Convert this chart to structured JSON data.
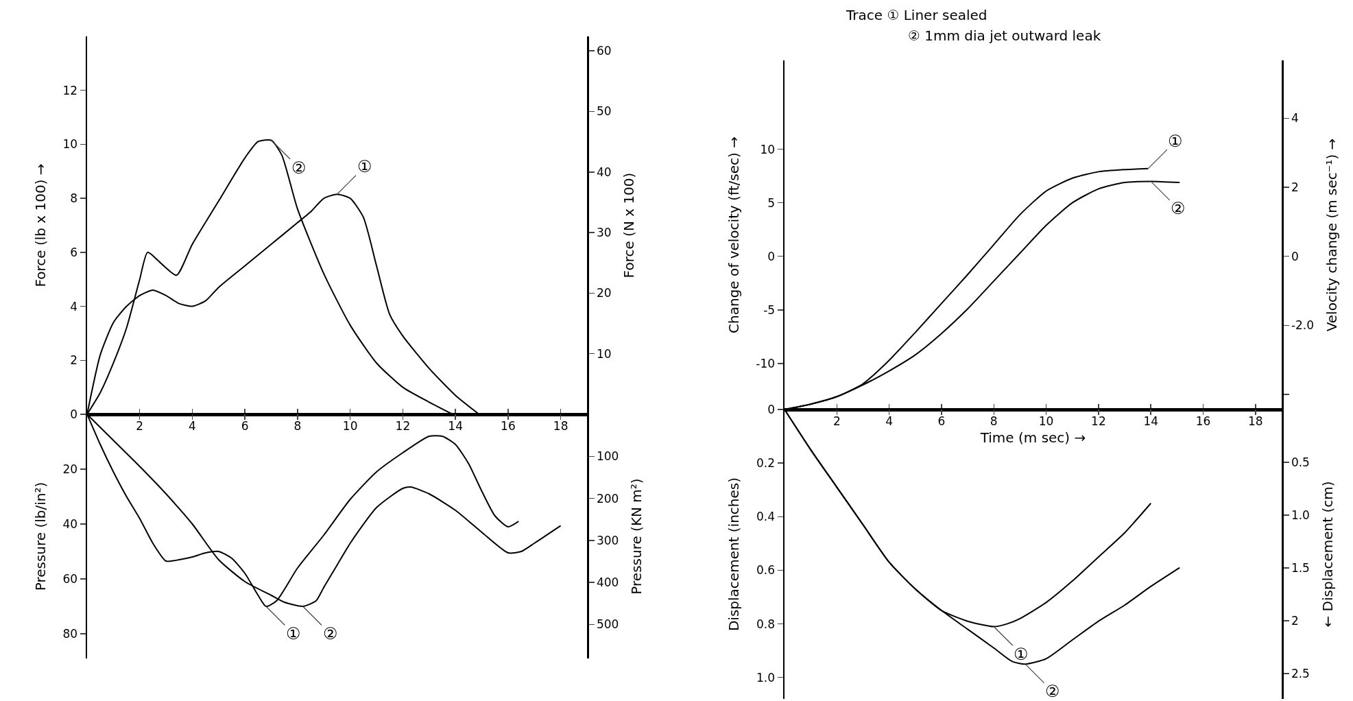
{
  "chart_data": [
    {
      "type": "line",
      "ylabel": "Force (lb x 100) →",
      "y2label": "Force (N x 100)",
      "xlim": [
        0,
        19
      ],
      "xticks": [
        2,
        4,
        6,
        8,
        10,
        12,
        14,
        16,
        18
      ],
      "ylim": [
        0,
        14
      ],
      "yticks": [
        0,
        2,
        4,
        6,
        8,
        10,
        12
      ],
      "y2lim": [
        0,
        62.4
      ],
      "y2ticks": [
        10,
        20,
        30,
        40,
        50,
        60
      ],
      "series": [
        {
          "name": "①",
          "color": "#000000",
          "x": [
            0,
            0.5,
            1,
            1.5,
            2,
            2.5,
            3,
            3.5,
            4,
            4.5,
            5,
            6,
            7,
            8,
            8.5,
            9,
            9.5,
            10,
            10.5,
            11,
            11.5,
            12,
            13,
            14,
            14.9
          ],
          "values": [
            0,
            2.2,
            3.4,
            4.0,
            4.4,
            4.6,
            4.4,
            4.1,
            4.0,
            4.2,
            4.7,
            5.5,
            6.3,
            7.1,
            7.5,
            8.0,
            8.15,
            8.0,
            7.3,
            5.5,
            3.7,
            2.9,
            1.7,
            0.7,
            0
          ]
        },
        {
          "name": "②",
          "color": "#000000",
          "x": [
            0,
            0.5,
            1,
            1.5,
            2,
            2.3,
            2.8,
            3.4,
            4,
            5,
            6,
            6.5,
            7,
            7.4,
            8,
            9,
            10,
            11,
            12,
            13,
            13.9
          ],
          "values": [
            0,
            0.8,
            1.9,
            3.2,
            5.0,
            6.0,
            5.6,
            5.15,
            6.3,
            7.9,
            9.5,
            10.1,
            10.15,
            9.6,
            7.6,
            5.2,
            3.3,
            1.9,
            1.0,
            0.45,
            0
          ]
        }
      ]
    },
    {
      "type": "line",
      "ylabel": "Pressure (lb/in²)",
      "y2label": "Pressure (KN m²)",
      "xlim": [
        0,
        19
      ],
      "xticks": [
        2,
        4,
        6,
        8,
        10,
        12,
        14,
        16,
        18
      ],
      "ylim": [
        89,
        0
      ],
      "yticks": [
        20,
        40,
        60,
        80
      ],
      "y2lim": [
        581,
        0
      ],
      "y2ticks": [
        100,
        200,
        300,
        400,
        500
      ],
      "tick_labels": "y",
      "series": [
        {
          "name": "①",
          "color": "#000000",
          "x": [
            0,
            0.5,
            1,
            1.5,
            2,
            2.5,
            3,
            3.5,
            4,
            4.5,
            5,
            5.5,
            6,
            6.5,
            6.8,
            7.2,
            8,
            9,
            10,
            11,
            12,
            13,
            13.5,
            14,
            14.5,
            15,
            15.5,
            16,
            16.4
          ],
          "values": [
            0,
            11,
            21,
            30,
            38,
            47,
            53.5,
            53,
            52,
            50.5,
            50,
            52.5,
            58,
            66,
            70,
            68,
            56,
            44,
            31,
            21,
            14,
            8,
            8,
            11,
            18,
            28,
            37,
            41,
            39
          ]
        },
        {
          "name": "②",
          "color": "#000000",
          "x": [
            0,
            1,
            2,
            3,
            4,
            5,
            6,
            7,
            7.5,
            8.2,
            8.7,
            9,
            9.5,
            10,
            11,
            12,
            12.3,
            13,
            14,
            15,
            16,
            16.5,
            17,
            18
          ],
          "values": [
            0,
            9.5,
            19,
            29,
            40,
            53,
            61,
            66,
            68.5,
            70,
            68,
            63,
            55,
            47,
            34,
            27,
            26.5,
            29,
            35,
            43,
            50.5,
            50,
            47,
            40.6
          ]
        }
      ]
    },
    {
      "type": "line",
      "ylabel": "Change of velocity (ft/sec) →",
      "y2label": "Velocity change (m sec⁻¹) →",
      "xlabel": "Time (m sec) →",
      "annotations": [
        "Trace ① Liner sealed",
        "② 1mm dia jet outward leak"
      ],
      "xlim": [
        0,
        19
      ],
      "xticks": [
        2,
        4,
        6,
        8,
        10,
        12,
        14,
        16,
        18
      ],
      "ylim": [
        -14.3,
        18.3
      ],
      "yticks": [
        -10,
        -5,
        0,
        5,
        10
      ],
      "y2lim": [
        -4.44,
        5.68
      ],
      "y2ticks": [
        {
          "value": -4,
          "label": null
        },
        {
          "value": -2,
          "label": "-2.0"
        },
        0,
        2,
        4
      ],
      "series": [
        {
          "name": "①",
          "color": "#000000",
          "x": [
            0,
            1,
            2,
            3,
            4,
            5,
            6,
            7,
            8,
            9,
            10,
            11,
            12,
            13,
            13.9
          ],
          "values": [
            -14.3,
            -13.8,
            -13.1,
            -11.9,
            -9.7,
            -7.1,
            -4.4,
            -1.7,
            1.1,
            3.9,
            6.1,
            7.3,
            7.9,
            8.1,
            8.2
          ]
        },
        {
          "name": "②",
          "color": "#000000",
          "x": [
            0,
            1,
            2,
            3,
            4,
            5,
            6,
            7,
            8,
            9,
            10,
            11,
            12,
            13,
            14,
            15.1
          ],
          "values": [
            -14.3,
            -13.8,
            -13.1,
            -12.0,
            -10.7,
            -9.2,
            -7.2,
            -4.9,
            -2.3,
            0.3,
            2.9,
            5.0,
            6.3,
            6.9,
            7.0,
            6.9
          ]
        }
      ]
    },
    {
      "type": "line",
      "ylabel": "Displacement (inches)",
      "y2label": "← Displacement (cm)",
      "xlim": [
        0,
        19
      ],
      "xticks": [
        2,
        4,
        6,
        8,
        10,
        12,
        14,
        16,
        18
      ],
      "ylim": [
        1.08,
        0
      ],
      "yticks": [
        0,
        {
          "value": 0.2,
          "label": "0.2"
        },
        {
          "value": 0.4,
          "label": "0.4"
        },
        {
          "value": 0.6,
          "label": "0.6"
        },
        {
          "value": 0.8,
          "label": "0.8"
        },
        {
          "value": 1.0,
          "label": "1.0"
        }
      ],
      "y2lim": [
        2.74,
        0
      ],
      "y2ticks": [
        {
          "value": 0.5,
          "label": "0.5"
        },
        {
          "value": 1.0,
          "label": "1.0"
        },
        {
          "value": 1.5,
          "label": "1.5"
        },
        2,
        {
          "value": 2.5,
          "label": "2.5"
        }
      ],
      "tick_labels": "y",
      "series": [
        {
          "name": "①",
          "color": "#000000",
          "x": [
            0,
            1,
            2,
            3,
            4,
            5,
            6,
            7,
            8,
            8.5,
            9,
            10,
            11,
            12,
            13,
            14
          ],
          "values": [
            0,
            0.15,
            0.29,
            0.43,
            0.57,
            0.67,
            0.75,
            0.79,
            0.81,
            0.8,
            0.78,
            0.72,
            0.64,
            0.55,
            0.46,
            0.35
          ]
        },
        {
          "name": "②",
          "color": "#000000",
          "x": [
            0,
            1,
            2,
            3,
            4,
            5,
            6,
            7,
            8,
            8.7,
            9.2,
            10,
            11,
            12,
            13,
            14,
            15.1
          ],
          "values": [
            0,
            0.15,
            0.29,
            0.43,
            0.57,
            0.67,
            0.75,
            0.82,
            0.89,
            0.94,
            0.95,
            0.93,
            0.86,
            0.79,
            0.73,
            0.66,
            0.59
          ]
        }
      ]
    }
  ]
}
